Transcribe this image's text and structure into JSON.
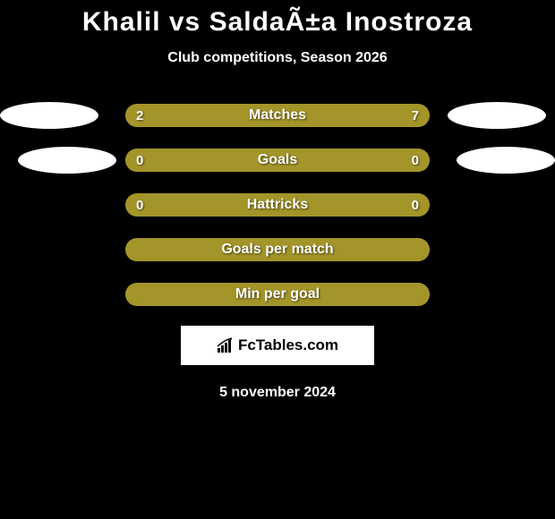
{
  "title": "Khalil vs SaldaÃ±a Inostroza",
  "subtitle": "Club competitions, Season 2026",
  "date": "5 november 2024",
  "logo_text": "FcTables.com",
  "colors": {
    "background": "#000000",
    "bar_fill": "#a39529",
    "bar_empty": "#000000",
    "text": "#ffffff",
    "oval": "#ffffff"
  },
  "stats": [
    {
      "label": "Matches",
      "left_value": "2",
      "right_value": "7",
      "left_fill_pct": 20,
      "right_fill_pct": 80,
      "show_ovals": true,
      "show_values": true,
      "left_oval_nudge_x": -10,
      "right_oval_nudge_x": 0
    },
    {
      "label": "Goals",
      "left_value": "0",
      "right_value": "0",
      "left_fill_pct": 100,
      "right_fill_pct": 0,
      "show_ovals": true,
      "show_values": true,
      "left_oval_nudge_x": 10,
      "right_oval_nudge_x": 10
    },
    {
      "label": "Hattricks",
      "left_value": "0",
      "right_value": "0",
      "left_fill_pct": 100,
      "right_fill_pct": 0,
      "show_ovals": false,
      "show_values": true
    },
    {
      "label": "Goals per match",
      "left_value": "",
      "right_value": "",
      "left_fill_pct": 100,
      "right_fill_pct": 0,
      "show_ovals": false,
      "show_values": false
    },
    {
      "label": "Min per goal",
      "left_value": "",
      "right_value": "",
      "left_fill_pct": 100,
      "right_fill_pct": 0,
      "show_ovals": false,
      "show_values": false
    }
  ]
}
